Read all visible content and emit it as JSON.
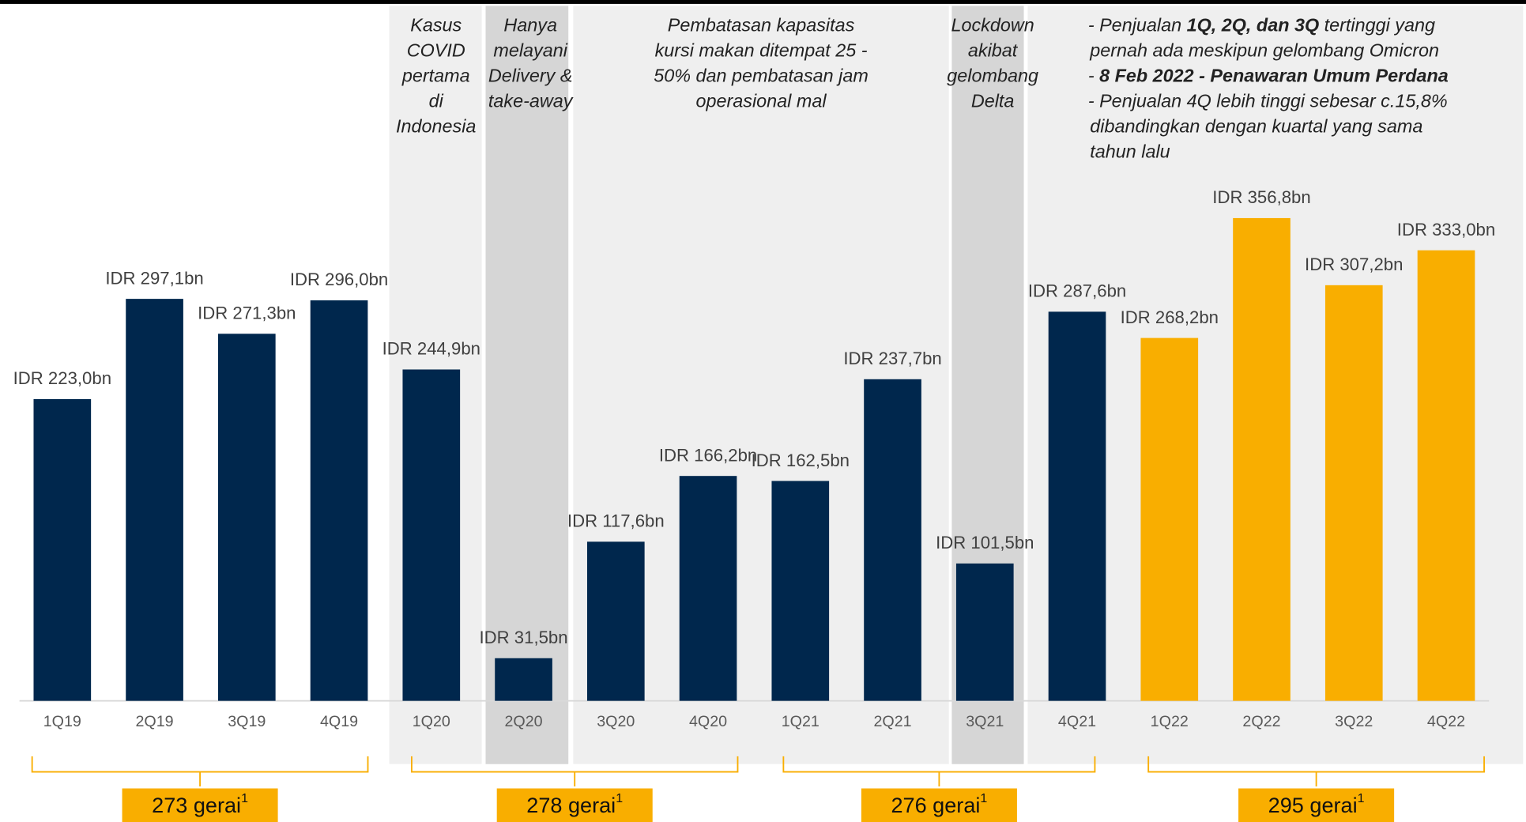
{
  "chart_data": {
    "type": "bar",
    "categories": [
      "1Q19",
      "2Q19",
      "3Q19",
      "4Q19",
      "1Q20",
      "2Q20",
      "3Q20",
      "4Q20",
      "1Q21",
      "2Q21",
      "3Q21",
      "4Q21",
      "1Q22",
      "2Q22",
      "3Q22",
      "4Q22"
    ],
    "values": [
      223.0,
      297.1,
      271.3,
      296.0,
      244.9,
      31.5,
      117.6,
      166.2,
      162.5,
      237.7,
      101.5,
      287.6,
      268.2,
      356.8,
      307.2,
      333.0
    ],
    "value_labels": [
      "IDR 223,0bn",
      "IDR 297,1bn",
      "IDR 271,3bn",
      "IDR 296,0bn",
      "IDR 244,9bn",
      "IDR 31,5bn",
      "IDR 117,6bn",
      "IDR 166,2bn",
      "IDR 162,5bn",
      "IDR 237,7bn",
      "IDR 101,5bn",
      "IDR 287,6bn",
      "IDR 268,2bn",
      "IDR 356,8bn",
      "IDR 307,2bn",
      "IDR 333,0bn"
    ],
    "colors": [
      "#00274d",
      "#00274d",
      "#00274d",
      "#00274d",
      "#00274d",
      "#00274d",
      "#00274d",
      "#00274d",
      "#00274d",
      "#00274d",
      "#00274d",
      "#00274d",
      "#f9ae00",
      "#f9ae00",
      "#f9ae00",
      "#f9ae00"
    ],
    "ylim": [
      0,
      518
    ],
    "annotations": [
      [
        "Kasus",
        "COVID",
        "pertama",
        "di",
        "Indonesia"
      ],
      [
        "Hanya",
        "melayani",
        "Delivery &",
        "take-away"
      ],
      [
        "Pembatasan kapasitas",
        "kursi makan ditempat 25 -",
        "50% dan pembatasan jam",
        "operasional mal"
      ],
      [
        "Lockdown",
        "akibat",
        "gelombang",
        "Delta"
      ]
    ],
    "note": [
      [
        {
          "text": "- Penjualan "
        },
        {
          "text": "1Q, 2Q, dan 3Q",
          "bold": true
        },
        {
          "text": " tertinggi yang"
        }
      ],
      [
        {
          "text": "pernah ada meskipun gelombang Omicron"
        }
      ],
      [
        {
          "text": "- "
        },
        {
          "text": "8 Feb 2022 - Penawaran Umum Perdana",
          "bold": true
        }
      ],
      [
        {
          "text": "- Penjualan 4Q lebih tinggi sebesar c.15,8%"
        }
      ],
      [
        {
          "text": "dibandingkan dengan kuartal yang sama"
        }
      ],
      [
        {
          "text": "tahun lalu"
        }
      ]
    ],
    "groups": [
      {
        "label": "273 gerai",
        "footnote": "1"
      },
      {
        "label": "278 gerai",
        "footnote": "1"
      },
      {
        "label": "276 gerai",
        "footnote": "1"
      },
      {
        "label": "295 gerai",
        "footnote": "1"
      }
    ]
  }
}
